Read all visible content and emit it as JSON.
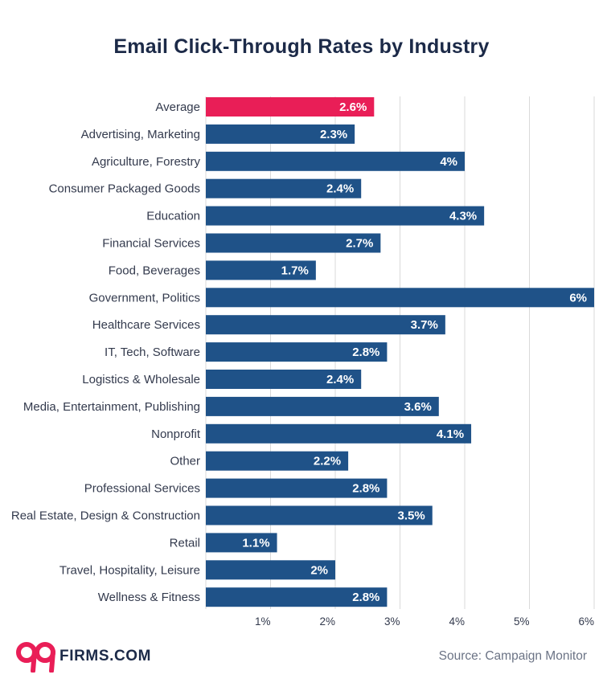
{
  "chart_data": {
    "type": "bar",
    "orientation": "horizontal",
    "title": "Email Click-Through Rates by Industry",
    "categories": [
      "Average",
      "Advertising, Marketing",
      "Agriculture, Forestry",
      "Consumer Packaged Goods",
      "Education",
      "Financial Services",
      "Food, Beverages",
      "Government, Politics",
      "Healthcare Services",
      "IT, Tech, Software",
      "Logistics & Wholesale",
      "Media, Entertainment, Publishing",
      "Nonprofit",
      "Other",
      "Professional Services",
      "Real Estate, Design & Construction",
      "Retail",
      "Travel, Hospitality, Leisure",
      "Wellness & Fitness"
    ],
    "values": [
      2.6,
      2.3,
      4,
      2.4,
      4.3,
      2.7,
      1.7,
      6,
      3.7,
      2.8,
      2.4,
      3.6,
      4.1,
      2.2,
      2.8,
      3.5,
      1.1,
      2,
      2.8
    ],
    "value_labels": [
      "2.6%",
      "2.3%",
      "4%",
      "2.4%",
      "4.3%",
      "2.7%",
      "1.7%",
      "6%",
      "3.7%",
      "2.8%",
      "2.4%",
      "3.6%",
      "4.1%",
      "2.2%",
      "2.8%",
      "3.5%",
      "1.1%",
      "2%",
      "2.8%"
    ],
    "xlim": [
      0,
      6
    ],
    "xticks": [
      1,
      2,
      3,
      4,
      5,
      6
    ],
    "xtick_labels": [
      "1%",
      "2%",
      "3%",
      "4%",
      "5%",
      "6%"
    ],
    "grid": "vertical",
    "colors": {
      "bar": "#1f5288",
      "highlight": "#e91e57",
      "grid": "#d9d9d9"
    },
    "highlight_category": "Average"
  },
  "footer": {
    "logo_number": "99",
    "logo_text": "FIRMS.COM",
    "source": "Source: Campaign Monitor"
  }
}
